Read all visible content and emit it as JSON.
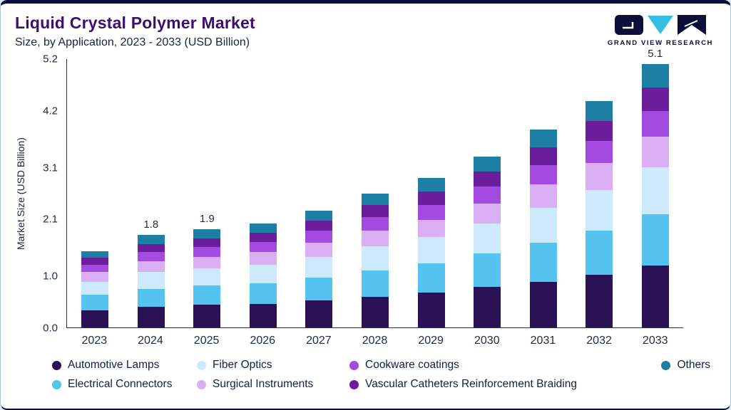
{
  "header": {
    "title": "Liquid Crystal Polymer Market",
    "subtitle": "Size, by Application, 2023 - 2033 (USD Billion)",
    "brand": "GRAND VIEW RESEARCH"
  },
  "chart_data": {
    "type": "bar",
    "stacked": true,
    "title": "Liquid Crystal Polymer Market Size, by Application, 2023 - 2033 (USD Billion)",
    "xlabel": "",
    "ylabel": "Market Size (USD Billion)",
    "ylim": [
      0,
      5.2
    ],
    "yticks": [
      "0.0",
      "1.0",
      "2.1",
      "3.1",
      "4.2",
      "5.2"
    ],
    "grid": false,
    "legend_position": "bottom",
    "categories": [
      "2023",
      "2024",
      "2025",
      "2026",
      "2027",
      "2028",
      "2029",
      "2030",
      "2031",
      "2032",
      "2033"
    ],
    "series": [
      {
        "name": "Automotive Lamps",
        "color": "#2b1156",
        "values": [
          0.33,
          0.4,
          0.44,
          0.46,
          0.52,
          0.6,
          0.67,
          0.78,
          0.88,
          1.02,
          1.2
        ]
      },
      {
        "name": "Electrical Connectors",
        "color": "#54c3ef",
        "values": [
          0.3,
          0.35,
          0.38,
          0.4,
          0.45,
          0.51,
          0.57,
          0.65,
          0.76,
          0.86,
          1.0
        ]
      },
      {
        "name": "Fiber Optics",
        "color": "#cdeafc",
        "values": [
          0.26,
          0.32,
          0.33,
          0.36,
          0.4,
          0.46,
          0.51,
          0.58,
          0.68,
          0.78,
          0.9
        ]
      },
      {
        "name": "Surgical Instruments",
        "color": "#d9aef2",
        "values": [
          0.18,
          0.21,
          0.22,
          0.24,
          0.27,
          0.31,
          0.34,
          0.39,
          0.45,
          0.52,
          0.6
        ]
      },
      {
        "name": "Cookware coatings",
        "color": "#a34be0",
        "values": [
          0.15,
          0.18,
          0.19,
          0.2,
          0.23,
          0.26,
          0.29,
          0.33,
          0.38,
          0.43,
          0.5
        ]
      },
      {
        "name": "Vascular Catheters Reinforcement Braiding",
        "color": "#6c1d9b",
        "values": [
          0.13,
          0.16,
          0.17,
          0.18,
          0.2,
          0.23,
          0.26,
          0.29,
          0.34,
          0.39,
          0.45
        ]
      },
      {
        "name": "Others",
        "color": "#1d7fa4",
        "values": [
          0.13,
          0.18,
          0.17,
          0.18,
          0.2,
          0.23,
          0.26,
          0.29,
          0.34,
          0.39,
          0.45
        ]
      }
    ],
    "bar_labels": {
      "2024": "1.8",
      "2025": "1.9",
      "2033": "5.1"
    },
    "legend_rows": [
      [
        "Automotive Lamps",
        "Fiber Optics",
        "Cookware coatings",
        "Others"
      ],
      [
        "Electrical Connectors",
        "Surgical Instruments",
        "Vascular Catheters Reinforcement Braiding"
      ]
    ]
  }
}
